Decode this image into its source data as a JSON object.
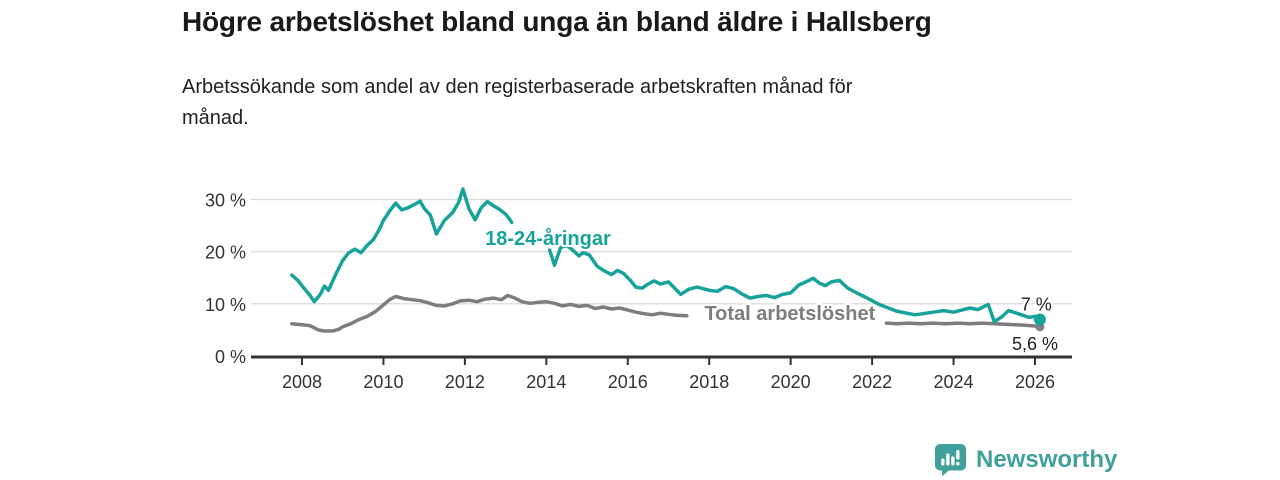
{
  "header": {
    "title": "Högre arbetslöshet bland unga än bland äldre i Hallsberg",
    "subtitle": "Arbetssökande som andel av den registerbaserade arbetskraften månad för\nmånad."
  },
  "footer": {
    "brand": "Newsworthy",
    "brand_color": "#40a09c",
    "logo_icon": "bar-chart-speech-bubble-icon"
  },
  "chart_data": {
    "type": "line",
    "title": "Högre arbetslöshet bland unga än bland äldre i Hallsberg",
    "subtitle": "Arbetssökande som andel av den registerbaserade arbetskraften månad för månad.",
    "unit": "%",
    "grid": "horizontal",
    "legend_position": "inline-line-labels",
    "colors": {
      "youth": "#18a39a",
      "total": "#7d7d7d",
      "grid": "#dcdcdc",
      "axis": "#333333",
      "value_label": "#222222"
    },
    "x_axis": {
      "label": "",
      "range": [
        2007.6,
        2026.9
      ],
      "ticks": [
        {
          "value": 2008,
          "label": "2008"
        },
        {
          "value": 2010,
          "label": "2010"
        },
        {
          "value": 2012,
          "label": "2012"
        },
        {
          "value": 2014,
          "label": "2014"
        },
        {
          "value": 2016,
          "label": "2016"
        },
        {
          "value": 2018,
          "label": "2018"
        },
        {
          "value": 2020,
          "label": "2020"
        },
        {
          "value": 2022,
          "label": "2022"
        },
        {
          "value": 2024,
          "label": "2024"
        },
        {
          "value": 2026,
          "label": "2026"
        }
      ]
    },
    "y_axis": {
      "label": "",
      "range": [
        0,
        33
      ],
      "ticks": [
        {
          "value": 0,
          "label": "0 %"
        },
        {
          "value": 10,
          "label": "10 %"
        },
        {
          "value": 20,
          "label": "20 %"
        },
        {
          "value": 30,
          "label": "30 %"
        }
      ]
    },
    "series": [
      {
        "name": "18-24-åringar",
        "data_name": "youth-series",
        "color": "#18a39a",
        "end_dot_radius": 6,
        "last_value_label": "7 %",
        "label_gaps": [
          [
            2013.16,
            2014.07
          ]
        ],
        "points": [
          [
            2007.75,
            15.5
          ],
          [
            2007.9,
            14.5
          ],
          [
            2008.05,
            13.0
          ],
          [
            2008.2,
            11.6
          ],
          [
            2008.3,
            10.4
          ],
          [
            2008.45,
            11.8
          ],
          [
            2008.55,
            13.4
          ],
          [
            2008.65,
            12.6
          ],
          [
            2008.85,
            16.0
          ],
          [
            2009.0,
            18.3
          ],
          [
            2009.15,
            19.8
          ],
          [
            2009.3,
            20.5
          ],
          [
            2009.45,
            19.8
          ],
          [
            2009.6,
            21.2
          ],
          [
            2009.75,
            22.3
          ],
          [
            2009.9,
            24.3
          ],
          [
            2010.0,
            26.0
          ],
          [
            2010.15,
            27.8
          ],
          [
            2010.3,
            29.3
          ],
          [
            2010.45,
            28.0
          ],
          [
            2010.6,
            28.4
          ],
          [
            2010.75,
            29.0
          ],
          [
            2010.9,
            29.7
          ],
          [
            2011.0,
            28.3
          ],
          [
            2011.15,
            27.0
          ],
          [
            2011.3,
            23.4
          ],
          [
            2011.5,
            26.0
          ],
          [
            2011.7,
            27.5
          ],
          [
            2011.85,
            29.5
          ],
          [
            2011.95,
            32.0
          ],
          [
            2012.1,
            28.2
          ],
          [
            2012.25,
            26.1
          ],
          [
            2012.4,
            28.4
          ],
          [
            2012.55,
            29.6
          ],
          [
            2012.7,
            28.8
          ],
          [
            2012.85,
            28.1
          ],
          [
            2013.0,
            27.2
          ],
          [
            2013.1,
            26.2
          ],
          [
            2013.15,
            25.6
          ],
          [
            2014.08,
            20.3
          ],
          [
            2014.2,
            17.4
          ],
          [
            2014.35,
            20.8
          ],
          [
            2014.5,
            21.2
          ],
          [
            2014.65,
            20.3
          ],
          [
            2014.8,
            19.2
          ],
          [
            2014.9,
            19.8
          ],
          [
            2015.05,
            19.4
          ],
          [
            2015.25,
            17.2
          ],
          [
            2015.45,
            16.2
          ],
          [
            2015.6,
            15.6
          ],
          [
            2015.75,
            16.4
          ],
          [
            2015.9,
            15.8
          ],
          [
            2016.05,
            14.6
          ],
          [
            2016.2,
            13.2
          ],
          [
            2016.35,
            13.0
          ],
          [
            2016.5,
            13.8
          ],
          [
            2016.65,
            14.4
          ],
          [
            2016.8,
            13.8
          ],
          [
            2017.0,
            14.2
          ],
          [
            2017.3,
            11.8
          ],
          [
            2017.5,
            12.8
          ],
          [
            2017.7,
            13.2
          ],
          [
            2017.85,
            12.9
          ],
          [
            2018.0,
            12.6
          ],
          [
            2018.2,
            12.4
          ],
          [
            2018.4,
            13.3
          ],
          [
            2018.6,
            12.9
          ],
          [
            2018.8,
            11.9
          ],
          [
            2019.0,
            11.1
          ],
          [
            2019.2,
            11.4
          ],
          [
            2019.4,
            11.6
          ],
          [
            2019.6,
            11.2
          ],
          [
            2019.8,
            11.8
          ],
          [
            2020.0,
            12.1
          ],
          [
            2020.2,
            13.6
          ],
          [
            2020.4,
            14.3
          ],
          [
            2020.55,
            14.9
          ],
          [
            2020.7,
            14.0
          ],
          [
            2020.85,
            13.5
          ],
          [
            2021.0,
            14.2
          ],
          [
            2021.2,
            14.5
          ],
          [
            2021.4,
            13.0
          ],
          [
            2021.6,
            12.2
          ],
          [
            2021.8,
            11.4
          ],
          [
            2022.0,
            10.6
          ],
          [
            2022.2,
            9.8
          ],
          [
            2022.4,
            9.2
          ],
          [
            2022.6,
            8.6
          ],
          [
            2022.85,
            8.2
          ],
          [
            2023.05,
            7.9
          ],
          [
            2023.25,
            8.1
          ],
          [
            2023.5,
            8.4
          ],
          [
            2023.75,
            8.7
          ],
          [
            2024.0,
            8.4
          ],
          [
            2024.2,
            8.8
          ],
          [
            2024.4,
            9.2
          ],
          [
            2024.6,
            8.9
          ],
          [
            2024.85,
            9.9
          ],
          [
            2025.0,
            6.6
          ],
          [
            2025.2,
            7.6
          ],
          [
            2025.35,
            8.7
          ],
          [
            2025.55,
            8.2
          ],
          [
            2025.7,
            7.8
          ],
          [
            2025.85,
            7.4
          ],
          [
            2026.0,
            7.6
          ],
          [
            2026.12,
            7.0
          ]
        ]
      },
      {
        "name": "Total arbetslöshet",
        "data_name": "total-series",
        "color": "#7d7d7d",
        "end_dot_radius": 4.5,
        "last_value_label": "5,6 %",
        "label_gaps": [
          [
            2017.48,
            2022.32
          ]
        ],
        "points": [
          [
            2007.75,
            6.2
          ],
          [
            2008.0,
            6.0
          ],
          [
            2008.2,
            5.8
          ],
          [
            2008.4,
            5.0
          ],
          [
            2008.55,
            4.8
          ],
          [
            2008.75,
            4.8
          ],
          [
            2008.9,
            5.1
          ],
          [
            2009.0,
            5.6
          ],
          [
            2009.2,
            6.2
          ],
          [
            2009.4,
            7.0
          ],
          [
            2009.6,
            7.6
          ],
          [
            2009.8,
            8.5
          ],
          [
            2010.0,
            9.8
          ],
          [
            2010.15,
            10.8
          ],
          [
            2010.3,
            11.4
          ],
          [
            2010.5,
            11.0
          ],
          [
            2010.7,
            10.8
          ],
          [
            2010.9,
            10.6
          ],
          [
            2011.1,
            10.2
          ],
          [
            2011.3,
            9.7
          ],
          [
            2011.5,
            9.6
          ],
          [
            2011.7,
            10.0
          ],
          [
            2011.9,
            10.6
          ],
          [
            2012.1,
            10.7
          ],
          [
            2012.3,
            10.4
          ],
          [
            2012.5,
            10.9
          ],
          [
            2012.7,
            11.1
          ],
          [
            2012.9,
            10.8
          ],
          [
            2013.05,
            11.6
          ],
          [
            2013.2,
            11.2
          ],
          [
            2013.4,
            10.4
          ],
          [
            2013.6,
            10.1
          ],
          [
            2013.8,
            10.3
          ],
          [
            2014.0,
            10.4
          ],
          [
            2014.2,
            10.1
          ],
          [
            2014.4,
            9.6
          ],
          [
            2014.6,
            9.9
          ],
          [
            2014.8,
            9.5
          ],
          [
            2015.0,
            9.7
          ],
          [
            2015.2,
            9.1
          ],
          [
            2015.4,
            9.4
          ],
          [
            2015.6,
            9.0
          ],
          [
            2015.8,
            9.2
          ],
          [
            2016.0,
            8.8
          ],
          [
            2016.2,
            8.4
          ],
          [
            2016.4,
            8.1
          ],
          [
            2016.6,
            7.9
          ],
          [
            2016.8,
            8.2
          ],
          [
            2017.0,
            8.0
          ],
          [
            2017.2,
            7.8
          ],
          [
            2017.45,
            7.7
          ],
          [
            2017.7,
            7.6
          ],
          [
            2018.0,
            7.5
          ],
          [
            2018.5,
            7.3
          ],
          [
            2019.0,
            7.1
          ],
          [
            2019.5,
            7.0
          ],
          [
            2020.0,
            7.1
          ],
          [
            2020.5,
            7.3
          ],
          [
            2021.0,
            7.0
          ],
          [
            2021.5,
            6.7
          ],
          [
            2022.0,
            6.5
          ],
          [
            2022.35,
            6.3
          ],
          [
            2022.6,
            6.2
          ],
          [
            2022.9,
            6.3
          ],
          [
            2023.2,
            6.2
          ],
          [
            2023.5,
            6.3
          ],
          [
            2023.8,
            6.2
          ],
          [
            2024.1,
            6.3
          ],
          [
            2024.4,
            6.2
          ],
          [
            2024.7,
            6.3
          ],
          [
            2025.0,
            6.2
          ],
          [
            2025.25,
            6.1
          ],
          [
            2025.5,
            6.0
          ],
          [
            2025.75,
            5.9
          ],
          [
            2026.0,
            5.75
          ],
          [
            2026.12,
            5.6
          ]
        ]
      }
    ],
    "annotations": [
      {
        "text": "18-24-åringar",
        "x": 2014.04,
        "y": 22.6,
        "color": "#18a39a",
        "size": 20,
        "weight": "bold",
        "anchor": "middle",
        "data_name": "youth-series-label"
      },
      {
        "text": "Total arbetslöshet",
        "x": 2019.98,
        "y": 8.2,
        "color": "#7d7d7d",
        "size": 20,
        "weight": "bold",
        "anchor": "middle",
        "data_name": "total-series-label"
      },
      {
        "text": "7 %",
        "x": 2026.03,
        "y": 9.9,
        "color": "#222222",
        "size": 18,
        "weight": "normal",
        "anchor": "middle",
        "data_name": "youth-last-value-label"
      },
      {
        "text": "5,6 %",
        "x": 2026.0,
        "y": 2.4,
        "color": "#222222",
        "size": 18,
        "weight": "normal",
        "anchor": "middle",
        "data_name": "total-last-value-label"
      }
    ]
  }
}
